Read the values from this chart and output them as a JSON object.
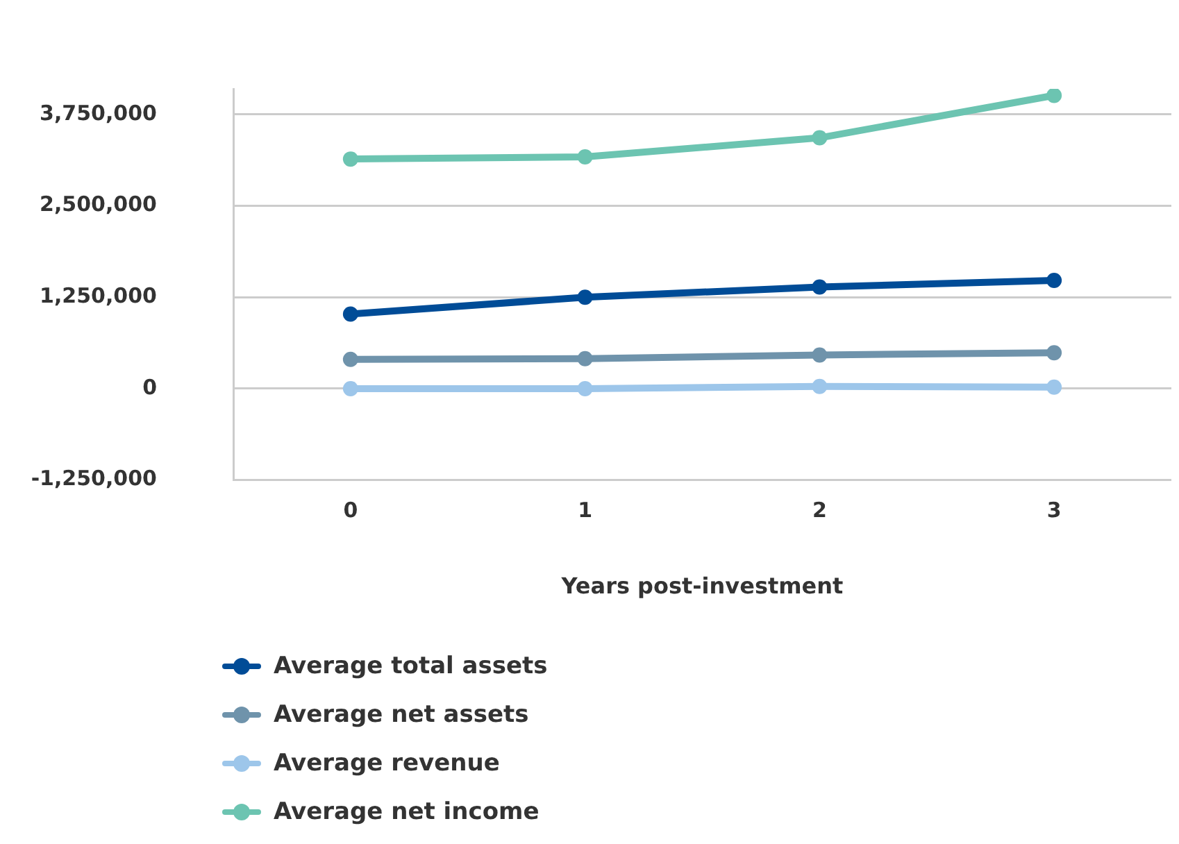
{
  "chart_data": {
    "type": "line",
    "xlabel": "Years post-investment",
    "categories": [
      "0",
      "1",
      "2",
      "3"
    ],
    "series": [
      {
        "name": "Average total assets",
        "color": "#004c97",
        "values": [
          1020000,
          1250000,
          1390000,
          1480000
        ]
      },
      {
        "name": "Average net assets",
        "color": "#6f93ab",
        "values": [
          400000,
          410000,
          460000,
          490000
        ]
      },
      {
        "name": "Average revenue",
        "color": "#9dc6ea",
        "values": [
          0,
          0,
          30000,
          20000
        ]
      },
      {
        "name": "Average net income",
        "color": "#6cc4b1",
        "values": [
          3140000,
          3170000,
          3430000,
          4010000
        ]
      }
    ],
    "ylim": [
      -1250000,
      4100000
    ],
    "yticks": [
      {
        "value": -1250000,
        "label": "-1,250,000"
      },
      0,
      {
        "value": 1250000,
        "label": "1,250,000"
      },
      {
        "value": 2500000,
        "label": "2,500,000"
      },
      {
        "value": 3750000,
        "label": "3,750,000"
      }
    ],
    "grid": "y",
    "legend": "bottom",
    "marker": "circle",
    "line_style": "solid"
  }
}
